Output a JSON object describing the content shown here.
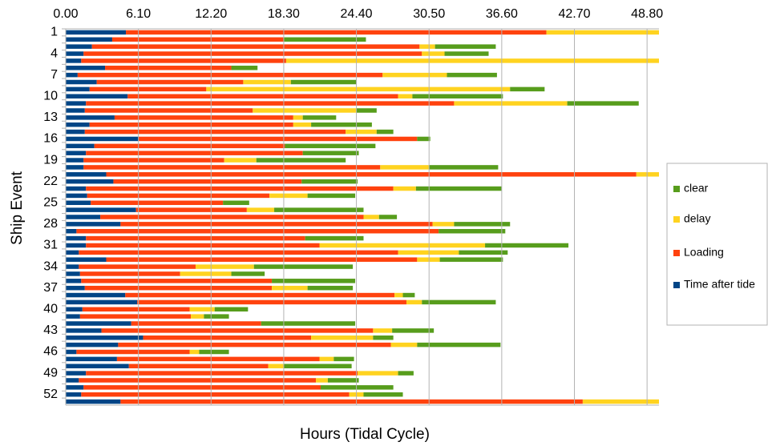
{
  "chart_data": {
    "type": "hbar-stacked",
    "x_label": "Hours (Tidal Cycle)",
    "y_label": "Ship Event",
    "categories": [
      "1",
      null,
      null,
      "4",
      null,
      null,
      "7",
      null,
      null,
      "10",
      null,
      null,
      "13",
      null,
      null,
      "16",
      null,
      null,
      "19",
      null,
      null,
      "22",
      null,
      null,
      "25",
      null,
      null,
      "28",
      null,
      null,
      "31",
      null,
      null,
      "34",
      null,
      null,
      "37",
      null,
      null,
      "40",
      null,
      null,
      "43",
      null,
      null,
      "46",
      null,
      null,
      "49",
      null,
      null,
      "52",
      null
    ],
    "xlim": [
      0,
      49.8
    ],
    "xticks": [
      {
        "value": 0,
        "label": "0.00"
      },
      {
        "value": 6.1,
        "label": "6.10"
      },
      {
        "value": 12.2,
        "label": "12.20"
      },
      {
        "value": 18.3,
        "label": "18.30"
      },
      {
        "value": 24.4,
        "label": "24.40"
      },
      {
        "value": 30.5,
        "label": "30.50"
      },
      {
        "value": 36.6,
        "label": "36.60"
      },
      {
        "value": 42.7,
        "label": "42.70"
      },
      {
        "value": 48.8,
        "label": "48.80"
      }
    ],
    "grid": true,
    "legend": "right",
    "series": [
      {
        "name": "Time after tide",
        "color": "#004586",
        "values": [
          5.05,
          3.9,
          2.2,
          1.5,
          1.3,
          3.3,
          1.0,
          2.6,
          2.0,
          5.2,
          1.7,
          1.6,
          4.1,
          2.0,
          1.6,
          6.1,
          2.4,
          1.7,
          1.5,
          1.5,
          3.4,
          4.0,
          1.7,
          1.8,
          2.1,
          5.9,
          2.9,
          4.6,
          0.9,
          1.7,
          1.7,
          1.1,
          3.4,
          1.1,
          1.2,
          1.3,
          1.6,
          5.0,
          6.0,
          1.4,
          1.2,
          5.5,
          3.0,
          6.5,
          4.4,
          0.9,
          4.3,
          5.3,
          1.7,
          1.1,
          1.5,
          1.3,
          4.6
        ]
      },
      {
        "name": "Loading",
        "color": "#ff420e",
        "values": [
          35.3,
          14.4,
          27.5,
          28.4,
          17.2,
          10.6,
          25.6,
          12.3,
          9.8,
          22.7,
          30.9,
          14.1,
          15.0,
          17.1,
          21.9,
          23.4,
          16.0,
          18.2,
          11.8,
          24.9,
          44.5,
          15.8,
          25.8,
          15.3,
          11.1,
          9.3,
          22.1,
          26.2,
          30.4,
          18.4,
          19.6,
          26.8,
          26.1,
          9.8,
          8.4,
          16.0,
          15.7,
          22.6,
          22.6,
          9.0,
          9.3,
          10.9,
          22.8,
          14.1,
          22.9,
          9.5,
          17.0,
          11.7,
          22.8,
          19.9,
          19.9,
          22.5,
          38.8
        ]
      },
      {
        "name": "delay",
        "color": "#ffd320",
        "values": [
          10,
          0,
          1.3,
          1.9,
          32,
          0,
          5.4,
          4.0,
          25.5,
          1.2,
          9.5,
          8.7,
          0.8,
          1.5,
          2.6,
          0,
          0,
          0,
          2.7,
          4.1,
          3,
          0,
          1.9,
          3.2,
          0,
          2.3,
          1.3,
          1.8,
          0,
          0,
          13.9,
          5.1,
          1.9,
          4.9,
          4.3,
          0,
          3.0,
          0.7,
          1.3,
          2.1,
          1.1,
          0,
          1.6,
          5.2,
          2.2,
          0.8,
          1.2,
          1.3,
          3.4,
          1.0,
          0,
          1.2,
          8
        ]
      },
      {
        "name": "clear",
        "color": "#579d1c",
        "values": [
          0,
          6.9,
          5.1,
          3.7,
          0,
          2.2,
          4.2,
          5.5,
          2.9,
          7.6,
          6.0,
          1.7,
          2.8,
          5.1,
          1.4,
          1.1,
          7.6,
          4.7,
          7.5,
          5.8,
          0,
          4.7,
          7.2,
          4.0,
          2.2,
          7.5,
          1.5,
          4.7,
          5.6,
          4.9,
          7.0,
          4.1,
          5.3,
          8.3,
          2.8,
          7.0,
          3.8,
          1.0,
          6.2,
          2.8,
          2.1,
          7.9,
          3.5,
          1.7,
          7.0,
          2.5,
          1.7,
          5.7,
          1.3,
          2.6,
          6.1,
          3.3,
          0
        ]
      }
    ]
  }
}
